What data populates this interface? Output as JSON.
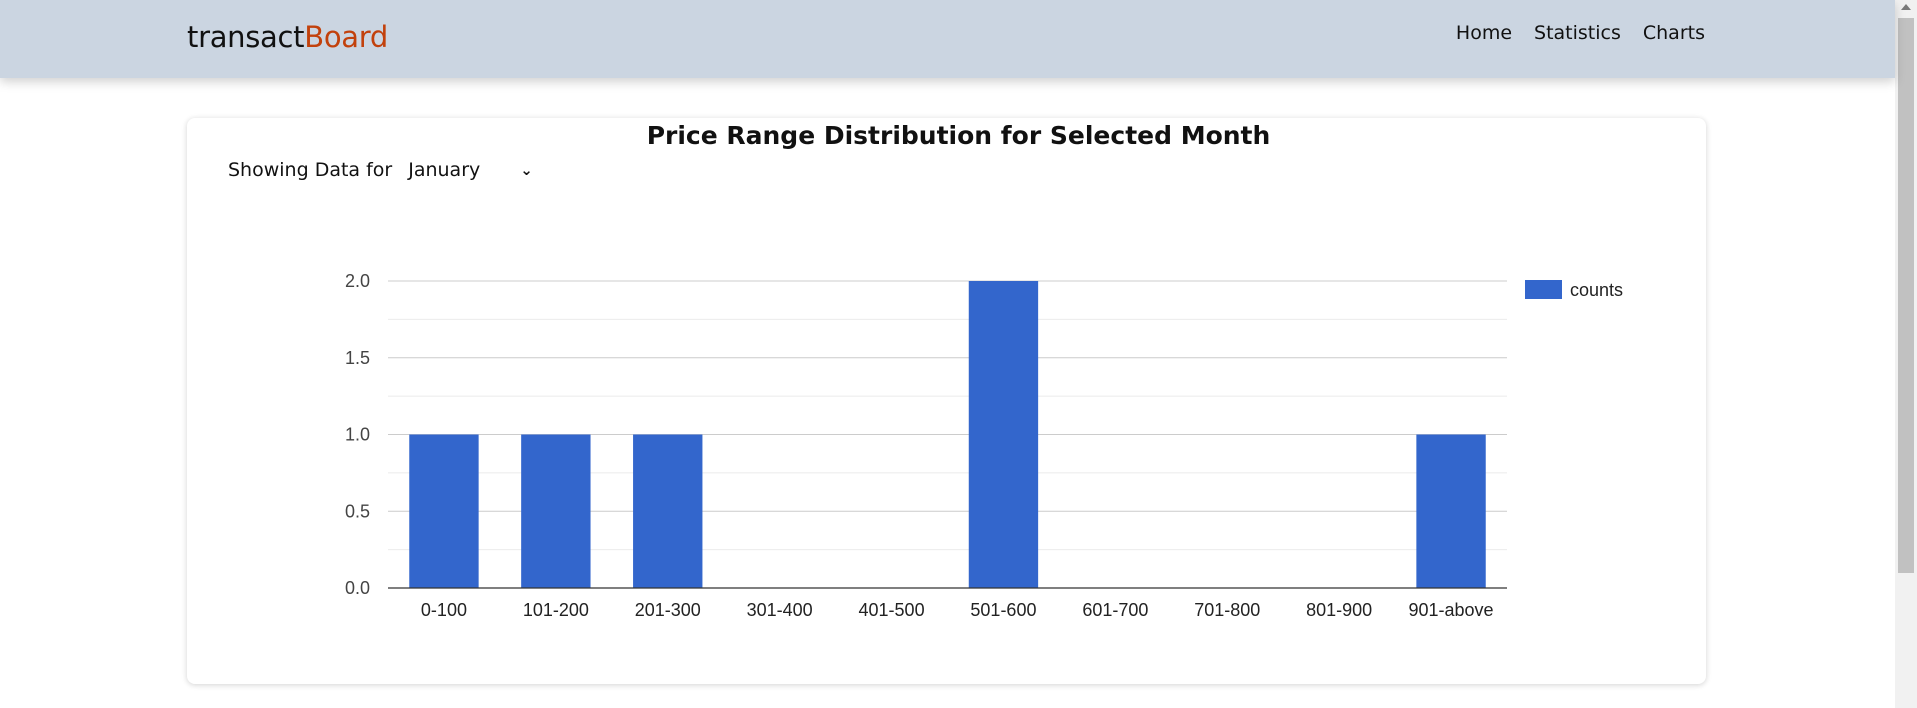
{
  "navbar": {
    "brand_prefix": "transact",
    "brand_accent": "Board",
    "links": [
      "Home",
      "Statistics",
      "Charts"
    ]
  },
  "filter": {
    "label": "Showing Data for",
    "selected_month": "January"
  },
  "colors": {
    "navbar_bg": "#cbd5e1",
    "brand_accent": "#c2410c",
    "bar": "#3366cc"
  },
  "chart_data": {
    "type": "bar",
    "title": "Price Range Distribution for Selected Month",
    "categories": [
      "0-100",
      "101-200",
      "201-300",
      "301-400",
      "401-500",
      "501-600",
      "601-700",
      "701-800",
      "801-900",
      "901-above"
    ],
    "series": [
      {
        "name": "counts",
        "values": [
          1,
          1,
          1,
          0,
          0,
          2,
          0,
          0,
          0,
          1
        ]
      }
    ],
    "ylim": [
      0,
      2
    ],
    "yticks": [
      "0.0",
      "0.5",
      "1.0",
      "1.5",
      "2.0"
    ],
    "grid": true,
    "legend": "right",
    "xlabel": "",
    "ylabel": ""
  }
}
